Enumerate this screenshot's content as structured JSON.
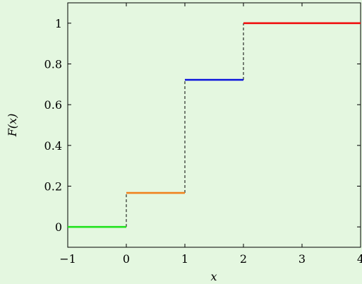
{
  "chart_data": {
    "type": "line",
    "xlabel": "x",
    "ylabel": "F(x)",
    "xlim": [
      -1,
      4
    ],
    "ylim": [
      -0.1,
      1.1
    ],
    "xticks": [
      -1,
      0,
      1,
      2,
      3,
      4
    ],
    "xtick_labels": [
      "−1",
      "0",
      "1",
      "2",
      "3",
      "4"
    ],
    "yticks": [
      0,
      0.2,
      0.4,
      0.6,
      0.8,
      1
    ],
    "ytick_labels": [
      "0",
      "0.2",
      "0.4",
      "0.6",
      "0.8",
      "1"
    ],
    "grid": false,
    "background": "#e4f7e0",
    "steps": [
      {
        "x0": -1,
        "x1": 0,
        "y": 0,
        "color": "#21e21d"
      },
      {
        "x0": 0,
        "x1": 1,
        "y": 0.167,
        "color": "#f0821e"
      },
      {
        "x0": 1,
        "x1": 2,
        "y": 0.722,
        "color": "#0b14dc"
      },
      {
        "x0": 2,
        "x1": 4,
        "y": 1,
        "color": "#f01010"
      }
    ],
    "jumps": [
      {
        "x": 0,
        "y0": 0,
        "y1": 0.167
      },
      {
        "x": 1,
        "y0": 0.167,
        "y1": 0.722
      },
      {
        "x": 2,
        "y0": 0.722,
        "y1": 1
      }
    ]
  }
}
